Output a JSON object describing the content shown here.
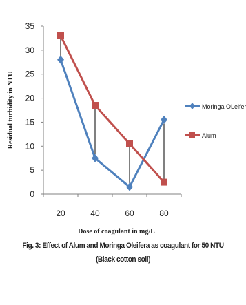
{
  "chart_data": {
    "type": "line",
    "categories": [
      "20",
      "40",
      "60",
      "80"
    ],
    "series": [
      {
        "name": "Moringa OLeifera",
        "values": [
          28,
          7.5,
          1.5,
          15.5
        ],
        "color": "#4f81bd",
        "marker": "diamond"
      },
      {
        "name": "Alum",
        "values": [
          33,
          18.5,
          10.5,
          2.5
        ],
        "color": "#c0504d",
        "marker": "square"
      }
    ],
    "xlabel": "Dose of coagulant in mg/L",
    "ylabel": "Residual turbidity in NTU",
    "ylim": [
      0,
      35
    ],
    "yticks": [
      "0",
      "5",
      "10",
      "15",
      "20",
      "25",
      "30",
      "35"
    ],
    "grid": false,
    "drop_lines": true,
    "legend_position": "right"
  },
  "caption": {
    "line1": "Fig. 3: Effect of Alum and Moringa Oleifera as coagulant for 50 NTU",
    "line2": "(Black cotton soil)"
  }
}
